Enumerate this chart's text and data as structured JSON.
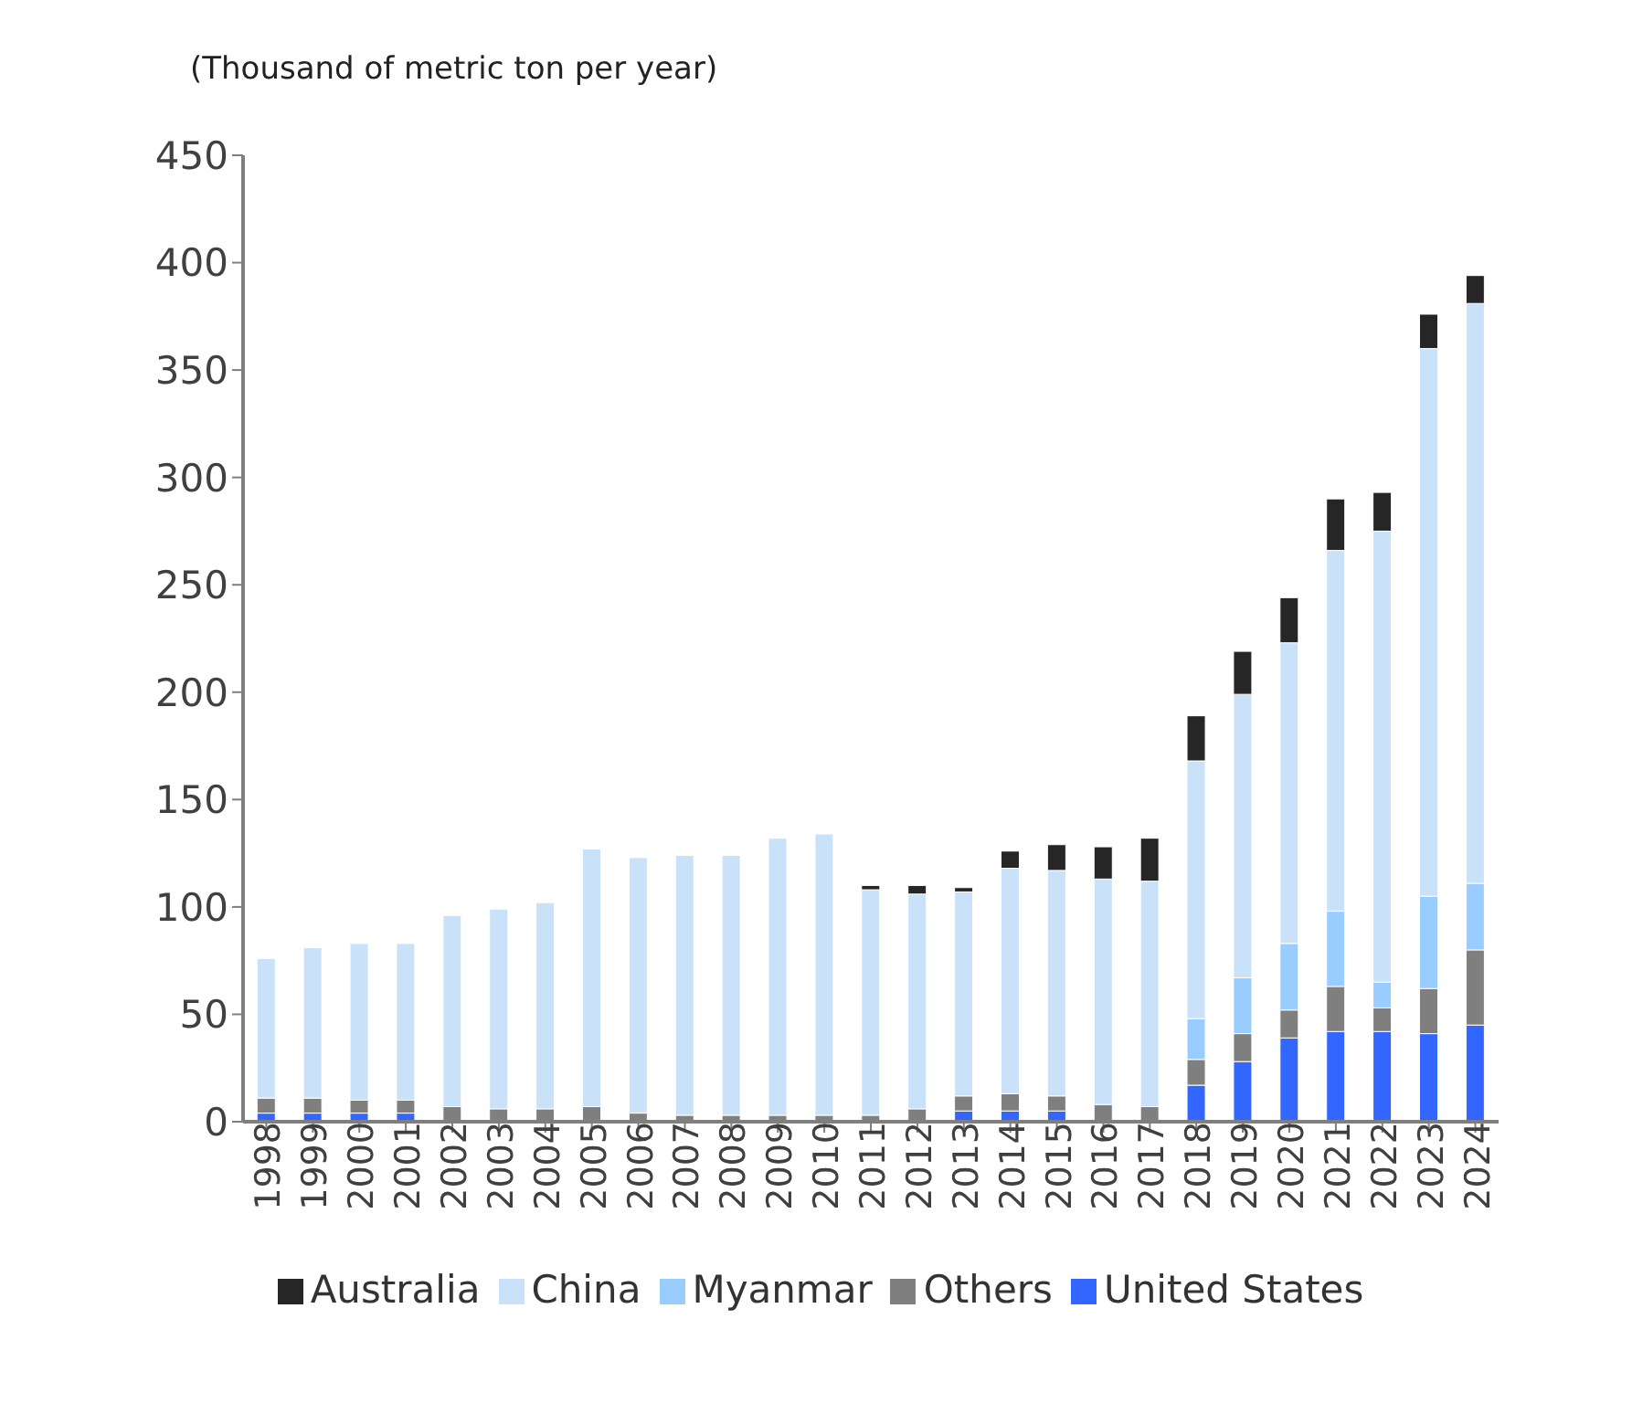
{
  "chart_data": {
    "type": "bar",
    "stacked": true,
    "ylabel": "(Thousand of metric ton per year)",
    "categories": [
      "1998",
      "1999",
      "2000",
      "2001",
      "2002",
      "2003",
      "2004",
      "2005",
      "2006",
      "2007",
      "2008",
      "2009",
      "2010",
      "2011",
      "2012",
      "2013",
      "2014",
      "2015",
      "2016",
      "2017",
      "2018",
      "2019",
      "2020",
      "2021",
      "2022",
      "2023",
      "2024"
    ],
    "series": [
      {
        "name": "United States",
        "color": "#3366ff",
        "values": [
          4,
          4,
          4,
          4,
          0,
          0,
          0,
          0,
          0,
          0,
          0,
          0,
          0,
          0,
          0,
          5,
          5,
          5,
          0,
          0,
          17,
          28,
          39,
          42,
          42,
          41,
          45
        ]
      },
      {
        "name": "Others",
        "color": "#7f7f7f",
        "values": [
          7,
          7,
          6,
          6,
          7,
          6,
          6,
          7,
          4,
          3,
          3,
          3,
          3,
          3,
          6,
          7,
          8,
          7,
          8,
          7,
          12,
          13,
          13,
          21,
          11,
          21,
          35
        ]
      },
      {
        "name": "Myanmar",
        "color": "#99ccff",
        "values": [
          0,
          0,
          0,
          0,
          0,
          0,
          0,
          0,
          0,
          0,
          0,
          0,
          0,
          0,
          0,
          0,
          0,
          0,
          0,
          0,
          19,
          26,
          31,
          35,
          12,
          43,
          31
        ]
      },
      {
        "name": "China",
        "color": "#c9e2f9",
        "values": [
          65,
          70,
          73,
          73,
          89,
          93,
          96,
          120,
          119,
          121,
          121,
          129,
          131,
          105,
          100,
          95,
          105,
          105,
          105,
          105,
          120,
          132,
          140,
          168,
          210,
          255,
          270
        ]
      },
      {
        "name": "Australia",
        "color": "#262626",
        "values": [
          0,
          0,
          0,
          0,
          0,
          0,
          0,
          0,
          0,
          0,
          0,
          0,
          0,
          2,
          4,
          2,
          8,
          12,
          15,
          20,
          21,
          20,
          21,
          24,
          18,
          16,
          13
        ]
      }
    ],
    "ylim": [
      0,
      450
    ],
    "yticks": [
      0,
      50,
      100,
      150,
      200,
      250,
      300,
      350,
      400,
      450
    ],
    "grid": false,
    "legend": "bottom"
  }
}
